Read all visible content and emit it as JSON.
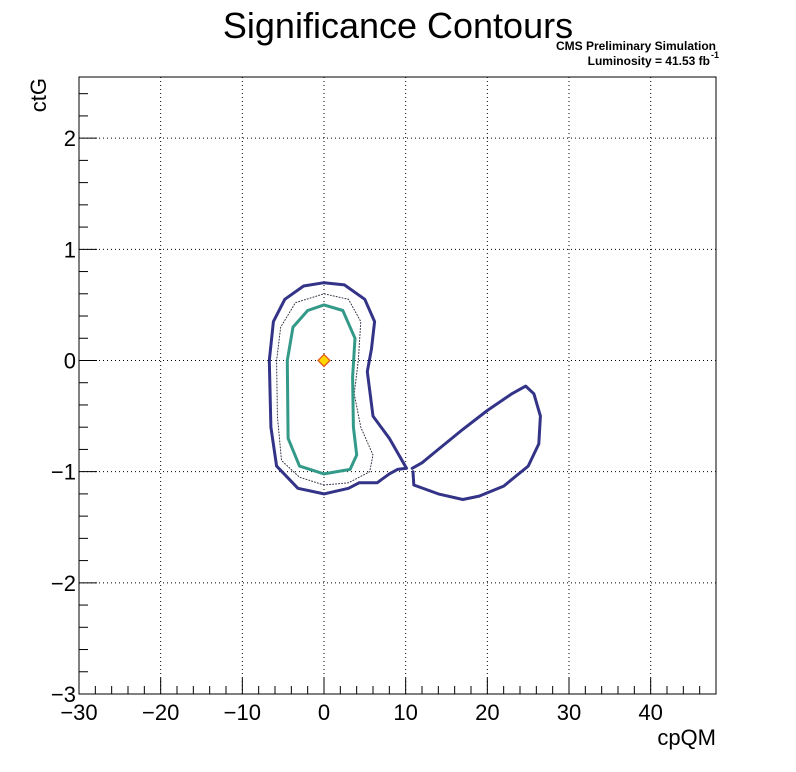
{
  "chart_data": {
    "type": "contour",
    "title": "Significance Contours",
    "annotations": {
      "line1": "CMS Preliminary Simulation",
      "line2_prefix": "Luminosity = 41.53 fb",
      "line2_sup": "-1"
    },
    "xlabel": "cpQM",
    "ylabel": "ctG",
    "xlim": [
      -30,
      48
    ],
    "ylim": [
      -3,
      2.55
    ],
    "x_ticks": [
      -30,
      -20,
      -10,
      0,
      10,
      20,
      30,
      40
    ],
    "x_tick_labels": [
      "−30",
      "−20",
      "−10",
      "0",
      "10",
      "20",
      "30",
      "40"
    ],
    "y_ticks": [
      -3,
      -2,
      -1,
      0,
      1,
      2
    ],
    "y_tick_labels": [
      "−3",
      "−2",
      "−1",
      "0",
      "1",
      "2"
    ],
    "grid": true,
    "best_fit": {
      "x": 0,
      "y": 0,
      "fill": "#ffd700",
      "stroke": "#e0501a"
    },
    "contours": [
      {
        "id": "outer-dark",
        "color": "#333388",
        "width": 3,
        "style": "solid",
        "points": [
          [
            4.3,
            -1.1
          ],
          [
            3,
            -1.15
          ],
          [
            0,
            -1.2
          ],
          [
            -3.2,
            -1.15
          ],
          [
            -5.8,
            -0.95
          ],
          [
            -6.5,
            -0.6
          ],
          [
            -6.7,
            0
          ],
          [
            -6.2,
            0.35
          ],
          [
            -4.8,
            0.55
          ],
          [
            -2.5,
            0.67
          ],
          [
            0,
            0.7
          ],
          [
            2.5,
            0.68
          ],
          [
            5,
            0.55
          ],
          [
            6.2,
            0.35
          ],
          [
            5.8,
            0.1
          ],
          [
            5.3,
            -0.1
          ],
          [
            6,
            -0.5
          ],
          [
            8,
            -0.7
          ],
          [
            10.1,
            -0.97
          ],
          [
            9,
            -0.98
          ],
          [
            8,
            -1.02
          ],
          [
            6.5,
            -1.1
          ],
          [
            4.3,
            -1.1
          ]
        ]
      },
      {
        "id": "outer-dark-right",
        "color": "#333388",
        "width": 3,
        "style": "solid",
        "points": [
          [
            10.8,
            -0.97
          ],
          [
            12,
            -0.92
          ],
          [
            14,
            -0.8
          ],
          [
            17,
            -0.62
          ],
          [
            20,
            -0.45
          ],
          [
            23,
            -0.3
          ],
          [
            24.7,
            -0.23
          ],
          [
            25.7,
            -0.3
          ],
          [
            26.5,
            -0.5
          ],
          [
            26.3,
            -0.75
          ],
          [
            25,
            -0.95
          ],
          [
            22,
            -1.13
          ],
          [
            19,
            -1.22
          ],
          [
            17,
            -1.25
          ],
          [
            14,
            -1.2
          ],
          [
            11,
            -1.12
          ],
          [
            10.9,
            -1.0
          ]
        ]
      },
      {
        "id": "dotted",
        "color": "#333344",
        "width": 1,
        "style": "dotted",
        "points": [
          [
            0,
            -1.12
          ],
          [
            -3,
            -1.05
          ],
          [
            -5.2,
            -0.9
          ],
          [
            -5.7,
            -0.5
          ],
          [
            -5.8,
            0
          ],
          [
            -5.3,
            0.3
          ],
          [
            -3.5,
            0.52
          ],
          [
            0,
            0.6
          ],
          [
            3,
            0.55
          ],
          [
            4.5,
            0.35
          ],
          [
            4.2,
            0
          ],
          [
            3.7,
            -0.3
          ],
          [
            4.5,
            -0.6
          ],
          [
            6,
            -0.85
          ],
          [
            5.6,
            -1.0
          ],
          [
            3,
            -1.1
          ],
          [
            0,
            -1.12
          ]
        ]
      },
      {
        "id": "inner-teal",
        "color": "#339988",
        "width": 3,
        "style": "solid",
        "points": [
          [
            0,
            -1.02
          ],
          [
            -3,
            -0.95
          ],
          [
            -4.4,
            -0.7
          ],
          [
            -4.5,
            0
          ],
          [
            -3.8,
            0.3
          ],
          [
            -2,
            0.45
          ],
          [
            0,
            0.5
          ],
          [
            2.3,
            0.45
          ],
          [
            3.8,
            0.2
          ],
          [
            3.5,
            -0.15
          ],
          [
            3.6,
            -0.6
          ],
          [
            4,
            -0.85
          ],
          [
            3.2,
            -0.98
          ],
          [
            0,
            -1.02
          ]
        ]
      }
    ]
  }
}
